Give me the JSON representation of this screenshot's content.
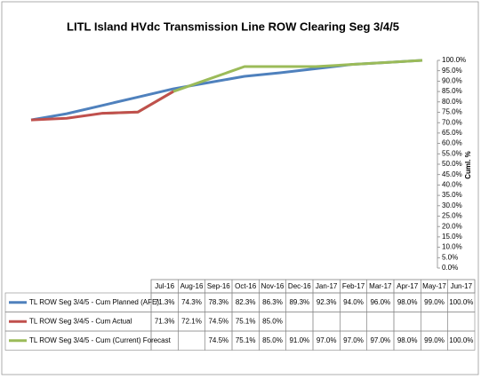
{
  "chart_data": {
    "type": "line",
    "title": "LITL Island  HVdc Transmission Line ROW Clearing Seg 3/4/5",
    "y_label": "Cuml. %",
    "categories": [
      "Jul-16",
      "Aug-16",
      "Sep-16",
      "Oct-16",
      "Nov-16",
      "Dec-16",
      "Jan-17",
      "Feb-17",
      "Mar-17",
      "Apr-17",
      "May-17",
      "Jun-17"
    ],
    "series": [
      {
        "name": "TL ROW Seg 3/4/5 - Cum Planned (AFE)",
        "color": "#4f81bd",
        "values": [
          71.3,
          74.3,
          78.3,
          82.3,
          86.3,
          89.3,
          92.3,
          94.0,
          96.0,
          98.0,
          99.0,
          100.0
        ],
        "value_labels": [
          "71.3%",
          "74.3%",
          "78.3%",
          "82.3%",
          "86.3%",
          "89.3%",
          "92.3%",
          "94.0%",
          "96.0%",
          "98.0%",
          "99.0%",
          "100.0%"
        ]
      },
      {
        "name": "TL ROW Seg 3/4/5 - Cum Actual",
        "color": "#c0504d",
        "values": [
          71.3,
          72.1,
          74.5,
          75.1,
          85.0,
          null,
          null,
          null,
          null,
          null,
          null,
          null
        ],
        "value_labels": [
          "71.3%",
          "72.1%",
          "74.5%",
          "75.1%",
          "85.0%",
          null,
          null,
          null,
          null,
          null,
          null,
          null
        ]
      },
      {
        "name": "TL ROW Seg 3/4/5 - Cum (Current) Forecast",
        "color": "#9bbb59",
        "values": [
          null,
          null,
          74.5,
          75.1,
          85.0,
          91.0,
          97.0,
          97.0,
          97.0,
          98.0,
          99.0,
          100.0
        ],
        "value_labels": [
          null,
          null,
          "74.5%",
          "75.1%",
          "85.0%",
          "91.0%",
          "97.0%",
          "97.0%",
          "97.0%",
          "98.0%",
          "99.0%",
          "100.0%"
        ]
      }
    ],
    "ylim": [
      0,
      100
    ],
    "yticks": [
      {
        "value": 0,
        "label": "0.0%"
      },
      {
        "value": 5,
        "label": "5.0%"
      },
      {
        "value": 10,
        "label": "10.0%"
      },
      {
        "value": 15,
        "label": "15.0%"
      },
      {
        "value": 20,
        "label": "20.0%"
      },
      {
        "value": 25,
        "label": "25.0%"
      },
      {
        "value": 30,
        "label": "30.0%"
      },
      {
        "value": 35,
        "label": "35.0%"
      },
      {
        "value": 40,
        "label": "40.0%"
      },
      {
        "value": 45,
        "label": "45.0%"
      },
      {
        "value": 50,
        "label": "50.0%"
      },
      {
        "value": 55,
        "label": "55.0%"
      },
      {
        "value": 60,
        "label": "60.0%"
      },
      {
        "value": 65,
        "label": "65.0%"
      },
      {
        "value": 70,
        "label": "70.0%"
      },
      {
        "value": 75,
        "label": "75.0%"
      },
      {
        "value": 80,
        "label": "80.0%"
      },
      {
        "value": 85,
        "label": "85.0%"
      },
      {
        "value": 90,
        "label": "90.0%"
      },
      {
        "value": 95,
        "label": "95.0%"
      },
      {
        "value": 100,
        "label": "100.0%"
      }
    ],
    "y_axis_side": "right"
  }
}
